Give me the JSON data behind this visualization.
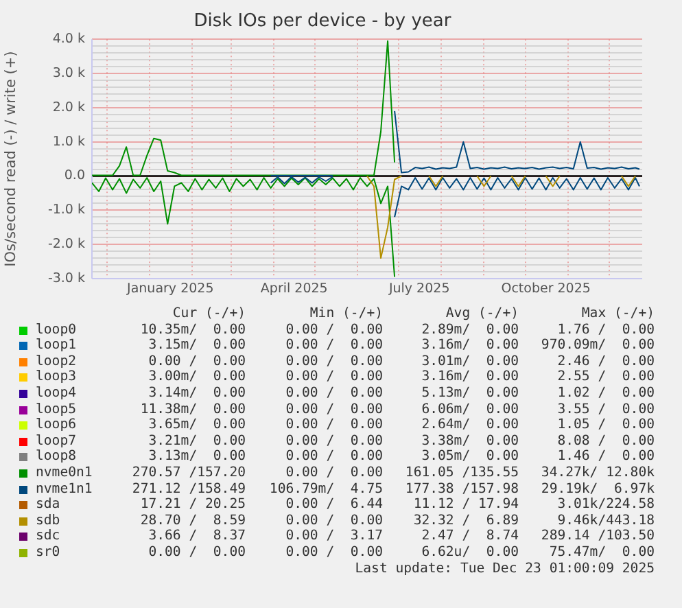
{
  "chart_data": {
    "type": "line",
    "title": "Disk IOs per device - by year",
    "ylabel": "IOs/second read (-) / write (+)",
    "x": [
      "2024-11-20",
      "2024-11-25",
      "2024-11-30",
      "2024-12-05",
      "2024-12-10",
      "2024-12-15",
      "2024-12-20",
      "2024-12-25",
      "2024-12-30",
      "2025-01-04",
      "2025-01-09",
      "2025-01-14",
      "2025-01-19",
      "2025-01-24",
      "2025-01-29",
      "2025-02-03",
      "2025-02-08",
      "2025-02-13",
      "2025-02-18",
      "2025-02-23",
      "2025-02-28",
      "2025-03-05",
      "2025-03-10",
      "2025-03-15",
      "2025-03-20",
      "2025-03-25",
      "2025-03-30",
      "2025-04-04",
      "2025-04-09",
      "2025-04-14",
      "2025-04-19",
      "2025-04-24",
      "2025-04-29",
      "2025-05-04",
      "2025-05-09",
      "2025-05-14",
      "2025-05-19",
      "2025-05-24",
      "2025-05-29",
      "2025-06-03",
      "2025-06-08",
      "2025-06-13",
      "2025-06-18",
      "2025-06-23",
      "2025-06-28",
      "2025-07-03",
      "2025-07-08",
      "2025-07-13",
      "2025-07-18",
      "2025-07-23",
      "2025-07-28",
      "2025-08-02",
      "2025-08-07",
      "2025-08-12",
      "2025-08-17",
      "2025-08-22",
      "2025-08-27",
      "2025-09-01",
      "2025-09-06",
      "2025-09-11",
      "2025-09-16",
      "2025-09-21",
      "2025-09-26",
      "2025-10-01",
      "2025-10-06",
      "2025-10-11",
      "2025-10-16",
      "2025-10-21",
      "2025-10-26",
      "2025-10-31",
      "2025-11-05",
      "2025-11-10",
      "2025-11-15",
      "2025-11-20",
      "2025-11-25",
      "2025-11-30",
      "2025-12-05",
      "2025-12-10",
      "2025-12-15",
      "2025-12-20",
      "2025-12-23"
    ],
    "xlim": [
      "2024-11-20",
      "2025-12-25"
    ],
    "xticks": [
      {
        "value": "2024-12-01",
        "label": null
      },
      {
        "value": "2025-01-01",
        "label": null
      },
      {
        "value": "2025-01-16",
        "label": "January 2025"
      },
      {
        "value": "2025-02-01",
        "label": null
      },
      {
        "value": "2025-03-01",
        "label": null
      },
      {
        "value": "2025-04-01",
        "label": null
      },
      {
        "value": "2025-04-16",
        "label": "April 2025"
      },
      {
        "value": "2025-05-01",
        "label": null
      },
      {
        "value": "2025-06-01",
        "label": null
      },
      {
        "value": "2025-07-01",
        "label": null
      },
      {
        "value": "2025-07-16",
        "label": "July 2025"
      },
      {
        "value": "2025-08-01",
        "label": null
      },
      {
        "value": "2025-09-01",
        "label": null
      },
      {
        "value": "2025-10-01",
        "label": null
      },
      {
        "value": "2025-10-16",
        "label": "October 2025"
      },
      {
        "value": "2025-11-01",
        "label": null
      },
      {
        "value": "2025-12-01",
        "label": null
      }
    ],
    "ylim": [
      -3000,
      4000
    ],
    "yticks": [
      {
        "value": -3000,
        "label": "-3.0 k"
      },
      {
        "value": -2800,
        "label": null
      },
      {
        "value": -2600,
        "label": null
      },
      {
        "value": -2400,
        "label": null
      },
      {
        "value": -2200,
        "label": null
      },
      {
        "value": -2000,
        "label": "-2.0 k"
      },
      {
        "value": -1800,
        "label": null
      },
      {
        "value": -1600,
        "label": null
      },
      {
        "value": -1400,
        "label": null
      },
      {
        "value": -1200,
        "label": null
      },
      {
        "value": -1000,
        "label": "-1.0 k"
      },
      {
        "value": -800,
        "label": null
      },
      {
        "value": -600,
        "label": null
      },
      {
        "value": -400,
        "label": null
      },
      {
        "value": -200,
        "label": null
      },
      {
        "value": 0,
        "label": "0.0"
      },
      {
        "value": 200,
        "label": null
      },
      {
        "value": 400,
        "label": null
      },
      {
        "value": 600,
        "label": null
      },
      {
        "value": 800,
        "label": null
      },
      {
        "value": 1000,
        "label": "1.0 k"
      },
      {
        "value": 1200,
        "label": null
      },
      {
        "value": 1400,
        "label": null
      },
      {
        "value": 1600,
        "label": null
      },
      {
        "value": 1800,
        "label": null
      },
      {
        "value": 2000,
        "label": "2.0 k"
      },
      {
        "value": 2200,
        "label": null
      },
      {
        "value": 2400,
        "label": null
      },
      {
        "value": 2600,
        "label": null
      },
      {
        "value": 2800,
        "label": null
      },
      {
        "value": 3000,
        "label": "3.0 k"
      },
      {
        "value": 3200,
        "label": null
      },
      {
        "value": 3400,
        "label": null
      },
      {
        "value": 3600,
        "label": null
      },
      {
        "value": 3800,
        "label": null
      },
      {
        "value": 4000,
        "label": "4.0 k"
      }
    ],
    "series": [
      {
        "name": "loop0",
        "color": "#00cc00",
        "values": [
          null,
          null,
          null,
          null,
          null,
          null,
          null,
          null,
          null,
          null,
          null,
          null,
          null,
          null,
          null,
          null,
          null,
          null,
          null,
          null,
          null,
          null,
          null,
          null,
          null,
          null,
          null,
          null,
          null,
          null,
          null,
          null,
          null,
          null,
          null,
          null,
          null,
          null,
          null,
          null,
          null,
          null,
          null,
          null,
          null,
          null,
          null,
          null,
          null,
          null,
          null,
          null,
          null,
          null,
          null,
          null,
          null,
          null,
          null,
          null,
          null,
          null,
          null,
          null,
          null,
          null,
          null,
          null,
          null,
          null,
          null,
          null,
          null,
          null,
          null,
          null,
          null,
          null,
          null,
          null,
          null
        ]
      },
      {
        "name": "loop1",
        "color": "#0066b3",
        "values": [
          null,
          null,
          null,
          null,
          null,
          null,
          null,
          null,
          null,
          null,
          null,
          null,
          null,
          null,
          null,
          null,
          null,
          null,
          null,
          null,
          null,
          null,
          null,
          null,
          null,
          null,
          null,
          null,
          null,
          null,
          null,
          null,
          null,
          null,
          null,
          null,
          null,
          null,
          null,
          null,
          null,
          null,
          null,
          null,
          null,
          null,
          null,
          null,
          null,
          null,
          null,
          null,
          null,
          null,
          null,
          null,
          null,
          null,
          null,
          null,
          null,
          null,
          null,
          null,
          null,
          null,
          null,
          null,
          null,
          null,
          null,
          null,
          null,
          null,
          null,
          null,
          null,
          null,
          null,
          null,
          null
        ]
      },
      {
        "name": "loop2",
        "color": "#ff8000",
        "values": [
          null,
          null,
          null,
          null,
          null,
          null,
          null,
          null,
          null,
          null,
          null,
          null,
          null,
          null,
          null,
          null,
          null,
          null,
          null,
          null,
          null,
          null,
          null,
          null,
          null,
          null,
          null,
          null,
          null,
          null,
          null,
          null,
          null,
          null,
          null,
          null,
          null,
          null,
          null,
          null,
          null,
          null,
          null,
          null,
          null,
          null,
          null,
          null,
          null,
          null,
          null,
          null,
          null,
          null,
          null,
          null,
          null,
          null,
          null,
          null,
          null,
          null,
          null,
          null,
          null,
          null,
          null,
          null,
          null,
          null,
          null,
          null,
          null,
          null,
          null,
          null,
          null,
          null,
          null,
          null,
          null
        ]
      },
      {
        "name": "loop3",
        "color": "#ffcc00",
        "values": [
          null,
          null,
          null,
          null,
          null,
          null,
          null,
          null,
          null,
          null,
          null,
          null,
          null,
          null,
          null,
          null,
          null,
          null,
          null,
          null,
          null,
          null,
          null,
          null,
          null,
          null,
          null,
          null,
          null,
          null,
          null,
          null,
          null,
          null,
          null,
          null,
          null,
          null,
          null,
          null,
          null,
          null,
          null,
          null,
          null,
          null,
          null,
          null,
          null,
          null,
          null,
          null,
          null,
          null,
          null,
          null,
          null,
          null,
          null,
          null,
          null,
          null,
          null,
          null,
          null,
          null,
          null,
          null,
          null,
          null,
          null,
          null,
          null,
          null,
          null,
          null,
          null,
          null,
          null,
          null,
          null
        ]
      },
      {
        "name": "loop4",
        "color": "#330099",
        "values": [
          null,
          null,
          null,
          null,
          null,
          null,
          null,
          null,
          null,
          null,
          null,
          null,
          null,
          null,
          null,
          null,
          null,
          null,
          null,
          null,
          null,
          null,
          null,
          null,
          null,
          null,
          null,
          null,
          null,
          null,
          null,
          null,
          null,
          null,
          null,
          null,
          null,
          null,
          null,
          null,
          null,
          null,
          null,
          null,
          null,
          null,
          null,
          null,
          null,
          null,
          null,
          null,
          null,
          null,
          null,
          null,
          null,
          null,
          null,
          null,
          null,
          null,
          null,
          null,
          null,
          null,
          null,
          null,
          null,
          null,
          null,
          null,
          null,
          null,
          null,
          null,
          null,
          null,
          null,
          null,
          null
        ]
      },
      {
        "name": "loop5",
        "color": "#990099",
        "values": [
          null,
          null,
          null,
          null,
          null,
          null,
          null,
          null,
          null,
          null,
          null,
          null,
          null,
          null,
          null,
          null,
          null,
          null,
          null,
          null,
          null,
          null,
          null,
          null,
          null,
          null,
          null,
          null,
          null,
          null,
          null,
          null,
          null,
          null,
          null,
          null,
          null,
          null,
          null,
          null,
          null,
          null,
          null,
          null,
          null,
          null,
          null,
          null,
          null,
          null,
          null,
          null,
          null,
          null,
          null,
          null,
          null,
          null,
          null,
          null,
          null,
          null,
          null,
          null,
          null,
          null,
          null,
          null,
          null,
          null,
          null,
          null,
          null,
          null,
          null,
          null,
          null,
          null,
          null,
          null,
          null
        ]
      },
      {
        "name": "loop6",
        "color": "#ccff00",
        "values": [
          null,
          null,
          null,
          null,
          null,
          null,
          null,
          null,
          null,
          null,
          null,
          null,
          null,
          null,
          null,
          null,
          null,
          null,
          null,
          null,
          null,
          null,
          null,
          null,
          null,
          null,
          null,
          null,
          null,
          null,
          null,
          null,
          null,
          null,
          null,
          null,
          null,
          null,
          null,
          null,
          null,
          null,
          null,
          null,
          null,
          null,
          null,
          null,
          null,
          null,
          null,
          null,
          null,
          null,
          null,
          null,
          null,
          null,
          null,
          null,
          null,
          null,
          null,
          null,
          null,
          null,
          null,
          null,
          null,
          null,
          null,
          null,
          null,
          null,
          null,
          null,
          null,
          null,
          null,
          null,
          null
        ]
      },
      {
        "name": "loop7",
        "color": "#ff0000",
        "values": [
          null,
          null,
          null,
          null,
          null,
          null,
          null,
          null,
          null,
          null,
          null,
          null,
          null,
          null,
          null,
          null,
          null,
          null,
          null,
          null,
          null,
          null,
          null,
          null,
          null,
          null,
          null,
          null,
          null,
          null,
          null,
          null,
          null,
          null,
          null,
          null,
          null,
          null,
          null,
          null,
          null,
          null,
          null,
          null,
          null,
          null,
          null,
          null,
          null,
          null,
          null,
          null,
          null,
          null,
          null,
          null,
          null,
          null,
          null,
          null,
          null,
          null,
          null,
          null,
          null,
          null,
          null,
          null,
          null,
          null,
          null,
          null,
          null,
          null,
          null,
          null,
          null,
          null,
          null,
          null,
          null
        ]
      },
      {
        "name": "loop8",
        "color": "#808080",
        "values": [
          null,
          null,
          null,
          null,
          null,
          null,
          null,
          null,
          null,
          null,
          null,
          null,
          null,
          null,
          null,
          null,
          null,
          null,
          null,
          null,
          null,
          null,
          null,
          null,
          null,
          null,
          null,
          null,
          null,
          null,
          null,
          null,
          null,
          null,
          null,
          null,
          null,
          null,
          null,
          null,
          null,
          null,
          null,
          null,
          null,
          null,
          null,
          null,
          null,
          null,
          null,
          null,
          null,
          null,
          null,
          null,
          null,
          null,
          null,
          null,
          null,
          null,
          null,
          null,
          null,
          null,
          null,
          null,
          null,
          null,
          null,
          null,
          null,
          null,
          null,
          null,
          null,
          null,
          null,
          null,
          null
        ]
      },
      {
        "name": "nvme0n1",
        "color": "#008f00",
        "values": [
          20,
          20,
          20,
          20,
          300,
          850,
          20,
          20,
          600,
          1100,
          1050,
          150,
          100,
          20,
          20,
          20,
          20,
          20,
          20,
          20,
          20,
          20,
          20,
          20,
          20,
          20,
          20,
          20,
          20,
          20,
          20,
          20,
          20,
          20,
          20,
          20,
          20,
          20,
          20,
          20,
          20,
          20,
          1300,
          3950,
          400,
          null,
          null,
          null,
          null,
          null,
          null,
          null,
          null,
          null,
          null,
          null,
          null,
          null,
          null,
          null,
          null,
          null,
          null,
          null,
          null,
          null,
          null,
          null,
          null,
          null,
          null,
          null,
          null,
          null,
          null,
          null,
          null,
          null,
          null,
          null,
          null
        ]
      },
      {
        "color": "#008f00",
        "values": [
          -200,
          -450,
          -60,
          -400,
          -80,
          -500,
          -100,
          -350,
          -50,
          -450,
          -150,
          -1400,
          -300,
          -200,
          -450,
          -80,
          -400,
          -100,
          -350,
          -60,
          -450,
          -80,
          -300,
          -100,
          -400,
          -50,
          -350,
          -80,
          -300,
          -60,
          -250,
          -50,
          -300,
          -80,
          -250,
          -60,
          -300,
          -80,
          -400,
          -50,
          -300,
          -80,
          -800,
          -300,
          -2950,
          null,
          null,
          null,
          null,
          null,
          null,
          null,
          null,
          null,
          null,
          null,
          null,
          null,
          null,
          null,
          null,
          null,
          null,
          null,
          null,
          null,
          null,
          null,
          null,
          null,
          null,
          null,
          null,
          null,
          null,
          null,
          null,
          null,
          null,
          null,
          null
        ]
      },
      {
        "name": "nvme1n1",
        "color": "#00487d",
        "values": [
          null,
          null,
          null,
          null,
          null,
          null,
          null,
          null,
          null,
          null,
          null,
          null,
          null,
          null,
          null,
          null,
          null,
          null,
          null,
          null,
          null,
          null,
          null,
          null,
          null,
          null,
          10,
          10,
          10,
          10,
          10,
          10,
          10,
          10,
          10,
          10,
          null,
          null,
          null,
          null,
          null,
          null,
          null,
          null,
          1900,
          100,
          120,
          250,
          220,
          260,
          200,
          240,
          220,
          260,
          1000,
          220,
          250,
          200,
          240,
          220,
          260,
          210,
          240,
          220,
          250,
          200,
          240,
          260,
          220,
          250,
          210,
          1000,
          230,
          250,
          200,
          240,
          220,
          260,
          210,
          240,
          200
        ]
      },
      {
        "color": "#00487d",
        "values": [
          null,
          null,
          null,
          null,
          null,
          null,
          null,
          null,
          null,
          null,
          null,
          null,
          null,
          null,
          null,
          null,
          null,
          null,
          null,
          null,
          null,
          null,
          null,
          null,
          null,
          null,
          -200,
          -30,
          -220,
          -20,
          -180,
          -40,
          -200,
          -30,
          -150,
          -20,
          null,
          null,
          null,
          null,
          null,
          null,
          null,
          null,
          -1200,
          -300,
          -400,
          -50,
          -380,
          -60,
          -400,
          -50,
          -350,
          -80,
          -400,
          -50,
          -380,
          -60,
          -400,
          -50,
          -350,
          -80,
          -400,
          -50,
          -380,
          -60,
          -400,
          -50,
          -350,
          -80,
          -400,
          -50,
          -380,
          -60,
          -400,
          -50,
          -350,
          -80,
          -400,
          -50,
          -300
        ]
      },
      {
        "name": "sda",
        "color": "#b35a00",
        "values": [
          null,
          null,
          null,
          null,
          null,
          null,
          null,
          null,
          null,
          null,
          null,
          null,
          null,
          null,
          null,
          null,
          null,
          null,
          null,
          null,
          null,
          null,
          null,
          null,
          null,
          null,
          null,
          null,
          null,
          null,
          null,
          null,
          null,
          null,
          null,
          null,
          null,
          null,
          null,
          null,
          null,
          null,
          null,
          null,
          null,
          null,
          null,
          null,
          null,
          null,
          null,
          null,
          null,
          null,
          null,
          null,
          null,
          null,
          null,
          null,
          null,
          null,
          null,
          null,
          null,
          null,
          null,
          null,
          null,
          null,
          null,
          null,
          null,
          null,
          null,
          null,
          null,
          null,
          null,
          null,
          null
        ]
      },
      {
        "name": "sdb",
        "color": "#b38f00",
        "values": [
          null,
          null,
          null,
          null,
          null,
          null,
          null,
          null,
          null,
          null,
          null,
          null,
          null,
          null,
          null,
          null,
          null,
          null,
          null,
          null,
          null,
          null,
          null,
          null,
          null,
          null,
          null,
          null,
          null,
          null,
          null,
          null,
          null,
          null,
          null,
          null,
          null,
          null,
          null,
          null,
          null,
          null,
          null,
          null,
          null,
          null,
          null,
          null,
          null,
          null,
          null,
          null,
          null,
          null,
          null,
          null,
          null,
          null,
          null,
          null,
          null,
          null,
          null,
          null,
          null,
          null,
          null,
          null,
          null,
          null,
          null,
          null,
          null,
          null,
          null,
          null,
          null,
          null,
          null,
          null,
          null
        ]
      },
      {
        "color": "#b38f00",
        "values": [
          null,
          null,
          null,
          null,
          null,
          null,
          null,
          null,
          null,
          null,
          null,
          null,
          null,
          null,
          null,
          null,
          null,
          null,
          null,
          null,
          null,
          null,
          null,
          null,
          null,
          null,
          null,
          null,
          null,
          null,
          null,
          null,
          null,
          null,
          null,
          null,
          null,
          null,
          null,
          null,
          0,
          -300,
          -2400,
          -1500,
          -100,
          0,
          null,
          null,
          null,
          0,
          -300,
          0,
          null,
          null,
          null,
          null,
          0,
          -300,
          0,
          null,
          null,
          0,
          -300,
          0,
          null,
          null,
          0,
          -300,
          0,
          null,
          null,
          null,
          null,
          null,
          null,
          null,
          null,
          0,
          -300,
          0,
          null
        ]
      },
      {
        "name": "sdc",
        "color": "#6b006b",
        "values": [
          null,
          null,
          null,
          null,
          null,
          null,
          null,
          null,
          null,
          null,
          null,
          null,
          null,
          null,
          null,
          null,
          null,
          null,
          null,
          null,
          null,
          null,
          null,
          null,
          null,
          null,
          null,
          null,
          null,
          null,
          null,
          null,
          null,
          null,
          null,
          null,
          null,
          null,
          null,
          null,
          null,
          null,
          null,
          null,
          null,
          null,
          null,
          null,
          null,
          null,
          null,
          null,
          null,
          null,
          null,
          null,
          null,
          null,
          null,
          null,
          null,
          null,
          null,
          null,
          null,
          null,
          null,
          null,
          null,
          null,
          null,
          null,
          null,
          null,
          null,
          null,
          null,
          null,
          null,
          null,
          null
        ]
      },
      {
        "name": "sr0",
        "color": "#8fb300",
        "values": [
          null,
          null,
          null,
          null,
          null,
          null,
          null,
          null,
          null,
          null,
          null,
          null,
          null,
          null,
          null,
          null,
          null,
          null,
          null,
          null,
          null,
          null,
          null,
          null,
          null,
          null,
          null,
          null,
          null,
          null,
          null,
          null,
          null,
          null,
          null,
          null,
          null,
          null,
          null,
          null,
          null,
          null,
          null,
          null,
          null,
          null,
          null,
          null,
          null,
          null,
          null,
          null,
          null,
          null,
          null,
          null,
          null,
          null,
          null,
          null,
          null,
          null,
          null,
          null,
          null,
          null,
          null,
          null,
          null,
          null,
          null,
          null,
          null,
          null,
          null,
          null,
          null,
          null,
          null,
          null,
          null
        ]
      }
    ],
    "ref_lines": [
      {
        "axis": "y",
        "value": 0,
        "color": "#000000"
      }
    ],
    "grid": true,
    "legend": "bottom",
    "marker": "none",
    "line_style": "solid",
    "annotations": [
      "Cur (-/+)",
      "Min (-/+)",
      "Avg (-/+)",
      "Max (-/+)",
      "10.35m/  0.00",
      "0.00 /  0.00",
      "2.89m/  0.00",
      "1.76 /  0.00",
      "3.15m/  0.00",
      "0.00 /  0.00",
      "3.16m/  0.00",
      "970.09m/  0.00",
      "0.00 /  0.00",
      "0.00 /  0.00",
      "3.01m/  0.00",
      "2.46 /  0.00",
      "3.00m/  0.00",
      "0.00 /  0.00",
      "3.16m/  0.00",
      "2.55 /  0.00",
      "3.14m/  0.00",
      "0.00 /  0.00",
      "5.13m/  0.00",
      "1.02 /  0.00",
      "11.38m/  0.00",
      "0.00 /  0.00",
      "6.06m/  0.00",
      "3.55 /  0.00",
      "3.65m/  0.00",
      "0.00 /  0.00",
      "2.64m/  0.00",
      "1.05 /  0.00",
      "3.21m/  0.00",
      "0.00 /  0.00",
      "3.38m/  0.00",
      "8.08 /  0.00",
      "3.13m/  0.00",
      "0.00 /  0.00",
      "3.05m/  0.00",
      "1.46 /  0.00",
      "270.57 /157.20",
      "0.00 /  0.00",
      "161.05 /135.55",
      "34.27k/ 12.80k",
      "271.12 /158.49",
      "106.79m/  4.75",
      "177.38 /157.98",
      "29.19k/  6.97k",
      "17.21 / 20.25",
      "0.00 /  6.44",
      "11.12 / 17.94",
      "3.01k/224.58",
      "28.70 /  8.59",
      "0.00 /  0.00",
      "32.32 /  6.89",
      "9.46k/443.18",
      "3.66 /  8.37",
      "0.00 /  3.17",
      "2.47 /  8.74",
      "289.14 /103.50",
      "0.00 /  0.00",
      "0.00 /  0.00",
      "6.62u/  0.00",
      "75.47m/  0.00",
      "Last update: Tue Dec 23 01:00:09 2025"
    ]
  }
}
